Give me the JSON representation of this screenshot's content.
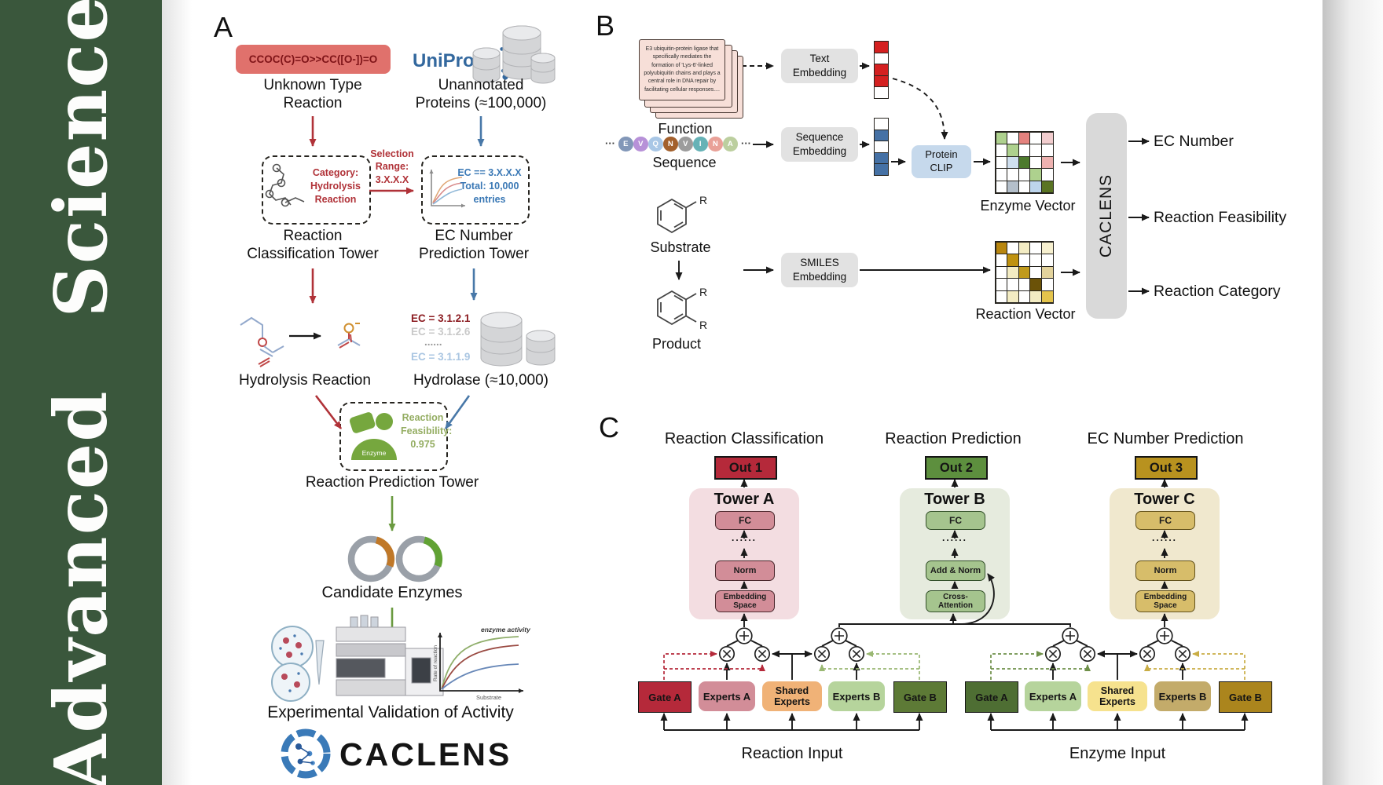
{
  "sidebar": {
    "word1": "Advanced",
    "word2": "Science"
  },
  "colors": {
    "sidebar_green": "#3a573c",
    "accent_red": "#b03238",
    "accent_blue": "#4878a8",
    "accent_green": "#6a9a40",
    "pill_bg": "#e0716c",
    "uniprot_blue": "#33689e",
    "out1": "#b5293a",
    "out2": "#5d8f3e",
    "out3": "#b8921f"
  },
  "a": {
    "label": "A",
    "smiles": "CCOC(C)=O>>CC([O-])=O",
    "unknown": "Unknown Type\nReaction",
    "uniprot": "UniProt",
    "unannotated": "Unannotated\nProteins (≈100,000)",
    "category": "Category:\nHydrolysis\nReaction",
    "selection": "Selection\nRange:\n3.X.X.X",
    "ecbox": "EC == 3.X.X.X\nTotal: 10,000\nentries",
    "tower_class": "Reaction\nClassification Tower",
    "tower_ec": "EC Number\nPrediction Tower",
    "hydrolysis": "Hydrolysis Reaction",
    "eclist": [
      {
        "text": "EC = 3.1.2.1",
        "color": "#8c1d22"
      },
      {
        "text": "EC = 3.1.2.6",
        "color": "#c9c9c9"
      },
      {
        "text": "......",
        "color": "#9a9a9a"
      },
      {
        "text": "EC = 3.1.1.9",
        "color": "#aac6e2"
      }
    ],
    "hydrolase": "Hydrolase (≈10,000)",
    "enzyme": "Enzyme",
    "feasibility": "Reaction\nFeasibility:\n0.975",
    "tower_pred": "Reaction Prediction Tower",
    "candidate": "Candidate Enzymes",
    "graph": {
      "activity": "enzyme activity",
      "rate": "Rate of reaction",
      "substrate": "Substrate"
    },
    "validation": "Experimental Validation of Activity",
    "wordmark": "CACLENS"
  },
  "b": {
    "label": "B",
    "card": "E3 ubiquitin-protein ligase that specifically mediates the formation of 'Lys-6'-linked polyubiquitin chains and plays a central role in DNA repair by facilitating cellular responses....",
    "function": "Function",
    "dots": "···",
    "residues": [
      {
        "letter": "E",
        "color": "#8297b8"
      },
      {
        "letter": "V",
        "color": "#b791d8"
      },
      {
        "letter": "Q",
        "color": "#a9c7e6"
      },
      {
        "letter": "N",
        "color": "#a3602c"
      },
      {
        "letter": "V",
        "color": "#9c9c9c"
      },
      {
        "letter": "I",
        "color": "#66b2b6"
      },
      {
        "letter": "N",
        "color": "#e9a198"
      },
      {
        "letter": "A",
        "color": "#bccf9f"
      }
    ],
    "sequence": "Sequence",
    "emb_text": "Text\nEmbedding",
    "emb_seq": "Sequence\nEmbedding",
    "emb_smiles": "SMILES\nEmbedding",
    "clip": "Protein\nCLIP",
    "r": "R",
    "substrate": "Substrate",
    "product": "Product",
    "text_vector": [
      "#d42020",
      "#ffffff",
      "#d42020",
      "#d42020",
      "#ffffff"
    ],
    "seq_vector": [
      "#ffffff",
      "#4571a5",
      "#ffffff",
      "#4571a5",
      "#4571a5"
    ],
    "enzyme_vector": [
      [
        "#aed18e",
        "#ffffff",
        "#e4827e",
        "#ffffff",
        "#f2cdce"
      ],
      [
        "#ffffff",
        "#aed18e",
        "#ffffff",
        "#ffffff",
        "#ffffff"
      ],
      [
        "#ffffff",
        "#cfdfef",
        "#4d7a2d",
        "#ffffff",
        "#eeb2b0"
      ],
      [
        "#ffffff",
        "#ffffff",
        "#ffffff",
        "#aed18e",
        "#ffffff"
      ],
      [
        "#ffffff",
        "#b4bfca",
        "#ffffff",
        "#bdd5ec",
        "#5a7423"
      ]
    ],
    "reaction_vector": [
      [
        "#b8860f",
        "#ffffff",
        "#f3ecc3",
        "#ffffff",
        "#f7f0cf"
      ],
      [
        "#ffffff",
        "#bf9210",
        "#ffffff",
        "#ffffff",
        "#ffffff"
      ],
      [
        "#ffffff",
        "#f3ecc3",
        "#c09a1c",
        "#ffffff",
        "#e3d39c"
      ],
      [
        "#ffffff",
        "#ffffff",
        "#ffffff",
        "#6b5208",
        "#ffffff"
      ],
      [
        "#ffffff",
        "#f3ecc3",
        "#ffffff",
        "#f3ecc3",
        "#e4c44c"
      ]
    ],
    "enzyme_vec_label": "Enzyme Vector",
    "reaction_vec_label": "Reaction Vector",
    "caclens": "CACLENS",
    "out_ec": "EC Number",
    "out_feas": "Reaction Feasibility",
    "out_cat": "Reaction Category"
  },
  "c": {
    "label": "C",
    "h1": "Reaction Classification",
    "h2": "Reaction Prediction",
    "h3": "EC Number Prediction",
    "out1": "Out 1",
    "out2": "Out 2",
    "out3": "Out 3",
    "towerA": {
      "title": "Tower A",
      "fc": "FC",
      "dots": "......",
      "mid": "Norm",
      "bottom": "Embedding\nSpace"
    },
    "towerB": {
      "title": "Tower B",
      "fc": "FC",
      "dots": "......",
      "mid": "Add & Norm",
      "bottom": "Cross-\nAttention"
    },
    "towerC": {
      "title": "Tower C",
      "fc": "FC",
      "dots": "......",
      "mid": "Norm",
      "bottom": "Embedding\nSpace"
    },
    "moe1": {
      "gate_a": "Gate A",
      "experts_a": "Experts A",
      "shared": "Shared\nExperts",
      "experts_b": "Experts B",
      "gate_b": "Gate B",
      "input": "Reaction Input"
    },
    "moe2": {
      "gate_a": "Gate A",
      "experts_a": "Experts A",
      "shared": "Shared\nExperts",
      "experts_b": "Experts B",
      "gate_b": "Gate B",
      "input": "Enzyme Input"
    }
  }
}
